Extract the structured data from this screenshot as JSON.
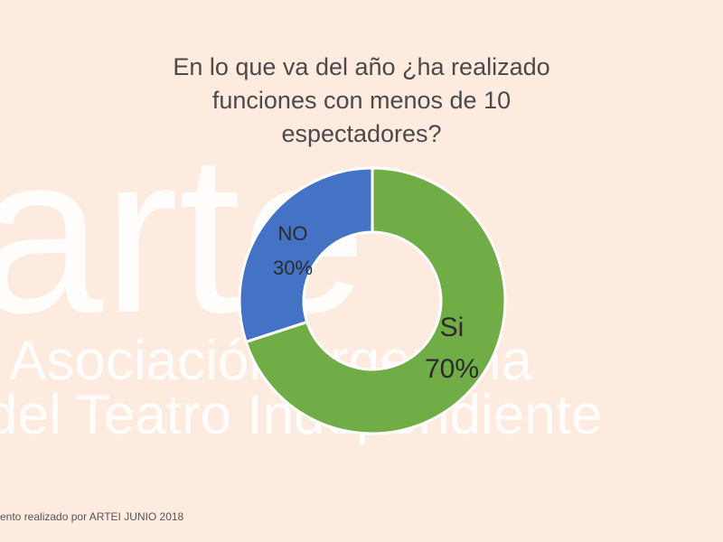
{
  "chart_data": {
    "type": "pie",
    "style": "donut",
    "title": "En lo que va del año ¿ha realizado funciones con menos de 10 espectadores?",
    "title_lines": [
      "En lo que va del año ¿ha realizado",
      "funciones con menos de 10",
      "espectadores?"
    ],
    "slices": [
      {
        "label": "Si",
        "value": 70,
        "percent_label": "70%",
        "color": "#70ad47"
      },
      {
        "label": "NO",
        "value": 30,
        "percent_label": "30%",
        "color": "#4472c4"
      }
    ],
    "legend": "none"
  },
  "watermark": {
    "logo_text": "arte",
    "line1": "Asociación Argentina",
    "line2": "del Teatro Independiente",
    "color": "#ffffff"
  },
  "footer": {
    "note": "ento realizado por ARTEI JUNIO 2018"
  }
}
